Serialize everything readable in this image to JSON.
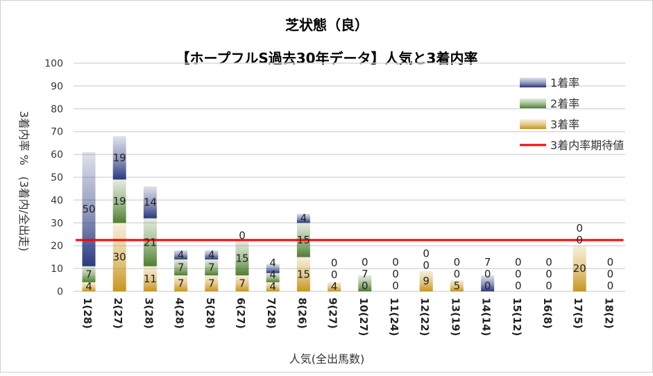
{
  "chart_data": {
    "type": "bar",
    "stacked": true,
    "title": "芝状態（良）",
    "subtitle": "【ホープフルS過去30年データ】人気と3着内率",
    "xlabel": "人気(全出馬数)",
    "ylabel": "3着内率 %　(3着内/全出走)",
    "ylim": [
      0,
      100
    ],
    "yticks": [
      0,
      10,
      20,
      30,
      40,
      50,
      60,
      70,
      80,
      90,
      100
    ],
    "grid": true,
    "legend_position": "top-right",
    "categories": [
      "1(28)",
      "2(27)",
      "3(28)",
      "4(28)",
      "5(28)",
      "6(27)",
      "7(28)",
      "8(26)",
      "9(27)",
      "10(27)",
      "11(24)",
      "12(22)",
      "13(19)",
      "14(14)",
      "15(12)",
      "16(8)",
      "17(5)",
      "18(2)"
    ],
    "series": [
      {
        "name": "3着率",
        "color": "#c9961f",
        "values": [
          4,
          30,
          11,
          7,
          7,
          7,
          4,
          15,
          4,
          0,
          0,
          9,
          5,
          0,
          0,
          0,
          20,
          0
        ]
      },
      {
        "name": "2着率",
        "color": "#4f7f2f",
        "values": [
          7,
          19,
          21,
          7,
          7,
          15,
          4,
          15,
          0,
          7,
          0,
          0,
          0,
          0,
          0,
          0,
          0,
          0
        ]
      },
      {
        "name": "1着率",
        "color": "#2c3a80",
        "values": [
          50,
          19,
          14,
          4,
          4,
          0,
          4,
          4,
          0,
          0,
          0,
          0,
          0,
          7,
          0,
          0,
          0,
          0
        ]
      }
    ],
    "reference_line": {
      "name": "3着内率期待値",
      "value": 22.5,
      "color": "#ff0000"
    }
  }
}
